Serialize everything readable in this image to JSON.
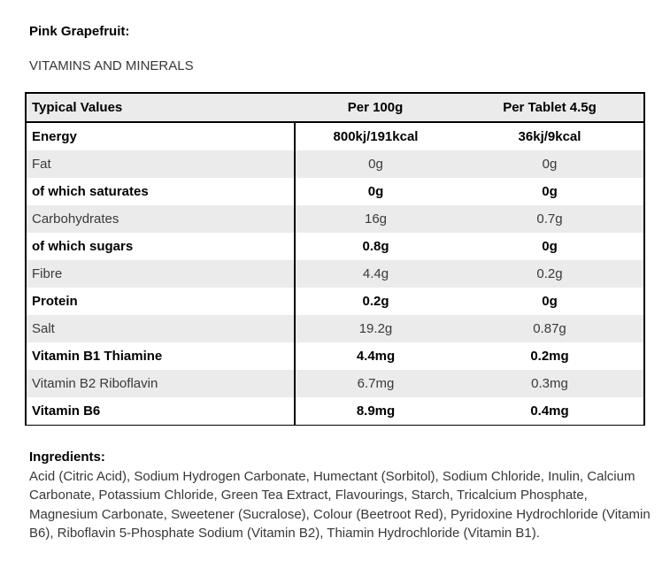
{
  "header": {
    "title": "Pink Grapefruit:",
    "section": "VITAMINS AND MINERALS"
  },
  "table": {
    "headers": [
      "Typical Values",
      "Per 100g",
      "Per Tablet 4.5g"
    ],
    "rows": [
      {
        "label": "Energy",
        "per100g": "800kj/191kcal",
        "perTablet": "36kj/9kcal",
        "bold": true
      },
      {
        "label": "Fat",
        "per100g": "0g",
        "perTablet": "0g",
        "bold": false
      },
      {
        "label": "of which saturates",
        "per100g": "0g",
        "perTablet": "0g",
        "bold": true
      },
      {
        "label": "Carbohydrates",
        "per100g": "16g",
        "perTablet": "0.7g",
        "bold": false
      },
      {
        "label": "of which sugars",
        "per100g": "0.8g",
        "perTablet": "0g",
        "bold": true
      },
      {
        "label": "Fibre",
        "per100g": "4.4g",
        "perTablet": "0.2g",
        "bold": false
      },
      {
        "label": "Protein",
        "per100g": "0.2g",
        "perTablet": "0g",
        "bold": true
      },
      {
        "label": "Salt",
        "per100g": "19.2g",
        "perTablet": "0.87g",
        "bold": false
      },
      {
        "label": "Vitamin B1 Thiamine",
        "per100g": "4.4mg",
        "perTablet": "0.2mg",
        "bold": true
      },
      {
        "label": "Vitamin B2 Riboflavin",
        "per100g": "6.7mg",
        "perTablet": "0.3mg",
        "bold": false
      },
      {
        "label": "Vitamin B6",
        "per100g": "8.9mg",
        "perTablet": "0.4mg",
        "bold": true
      }
    ]
  },
  "ingredients": {
    "heading": "Ingredients:",
    "text": "Acid (Citric Acid), Sodium Hydrogen Carbonate, Humectant (Sorbitol), Sodium Chloride, Inulin, Calcium Carbonate, Potassium Chloride, Green Tea Extract, Flavourings, Starch, Tricalcium Phosphate, Magnesium Carbonate, Sweetener (Sucralose), Colour (Beetroot Red), Pyridoxine Hydrochloride (Vitamin B6), Riboflavin 5-Phosphate Sodium (Vitamin B2), Thiamin Hydrochloride (Vitamin B1)."
  },
  "colors": {
    "row_shade": "#ebebeb",
    "table_border": "#000000",
    "text_regular": "#3a3a3a",
    "text_bold": "#000000"
  }
}
